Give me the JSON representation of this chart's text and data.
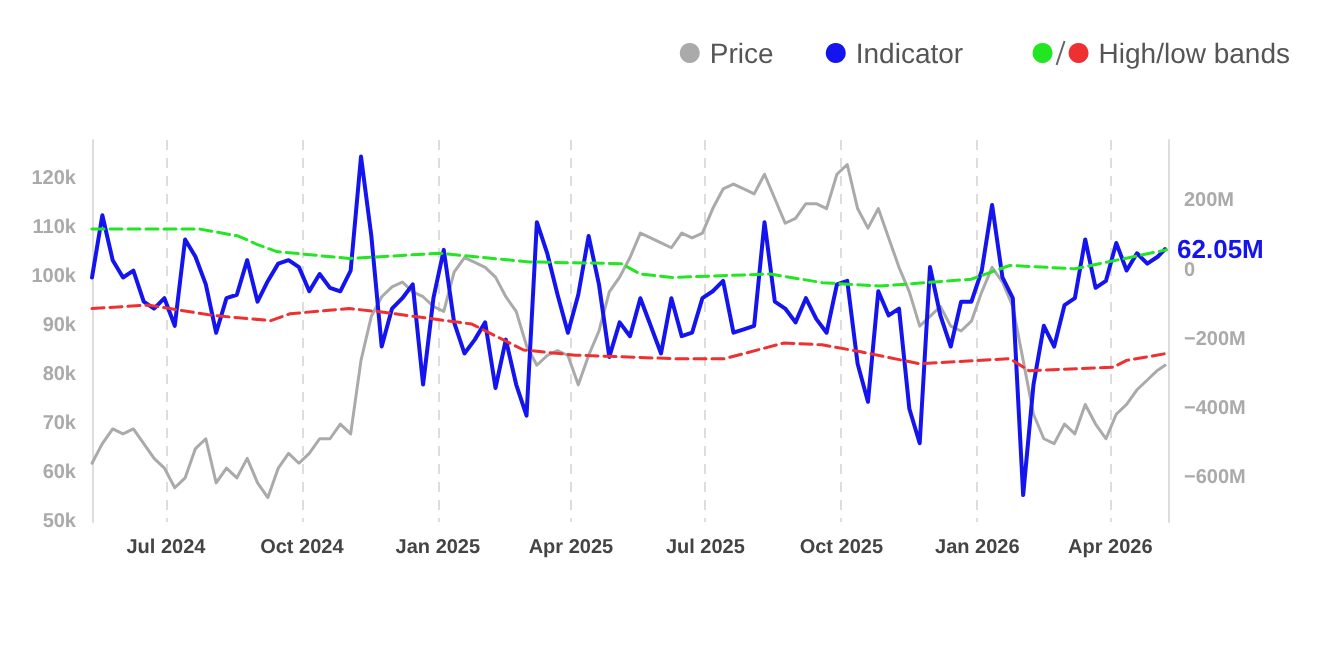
{
  "chart_data": {
    "type": "line",
    "marker": "none",
    "grid": "x",
    "legend": "top right",
    "x": [
      "2024-05-12",
      "2024-05-19",
      "2024-05-26",
      "2024-06-02",
      "2024-06-09",
      "2024-06-16",
      "2024-06-23",
      "2024-06-30",
      "2024-07-07",
      "2024-07-14",
      "2024-07-21",
      "2024-07-28",
      "2024-08-04",
      "2024-08-11",
      "2024-08-18",
      "2024-08-25",
      "2024-09-01",
      "2024-09-08",
      "2024-09-15",
      "2024-09-22",
      "2024-09-29",
      "2024-10-06",
      "2024-10-13",
      "2024-10-20",
      "2024-10-27",
      "2024-11-03",
      "2024-11-10",
      "2024-11-17",
      "2024-11-24",
      "2024-12-01",
      "2024-12-08",
      "2024-12-15",
      "2024-12-22",
      "2024-12-29",
      "2025-01-05",
      "2025-01-12",
      "2025-01-19",
      "2025-01-26",
      "2025-02-02",
      "2025-02-09",
      "2025-02-16",
      "2025-02-23",
      "2025-03-02",
      "2025-03-09",
      "2025-03-16",
      "2025-03-23",
      "2025-03-30",
      "2025-04-06",
      "2025-04-13",
      "2025-04-20",
      "2025-04-27",
      "2025-05-04",
      "2025-05-11",
      "2025-05-18",
      "2025-05-25",
      "2025-06-01",
      "2025-06-08",
      "2025-06-15",
      "2025-06-22",
      "2025-06-29",
      "2025-07-06",
      "2025-07-13",
      "2025-07-20",
      "2025-07-27",
      "2025-08-03",
      "2025-08-10",
      "2025-08-17",
      "2025-08-24",
      "2025-08-31",
      "2025-09-07",
      "2025-09-14",
      "2025-09-21",
      "2025-09-28",
      "2025-10-05",
      "2025-10-12",
      "2025-10-19",
      "2025-10-26",
      "2025-11-02",
      "2025-11-09",
      "2025-11-16",
      "2025-11-23",
      "2025-11-30",
      "2025-12-07",
      "2025-12-14",
      "2025-12-21",
      "2025-12-28",
      "2026-01-04",
      "2026-01-11",
      "2026-01-18",
      "2026-01-25",
      "2026-02-01",
      "2026-02-08",
      "2026-02-15",
      "2026-02-22",
      "2026-03-01",
      "2026-03-08",
      "2026-03-15",
      "2026-03-22",
      "2026-03-29",
      "2026-04-05",
      "2026-04-12",
      "2026-04-19",
      "2026-04-26",
      "2026-05-03",
      "2026-05-08"
    ],
    "xlim": [
      "2024-05-12",
      "2026-05-10"
    ],
    "xticks": [
      {
        "value": "2024-07-01",
        "label": "Jul 2024"
      },
      {
        "value": "2024-10-01",
        "label": "Oct 2024"
      },
      {
        "value": "2025-01-01",
        "label": "Jan 2025"
      },
      {
        "value": "2025-04-01",
        "label": "Apr 2025"
      },
      {
        "value": "2025-07-01",
        "label": "Jul 2025"
      },
      {
        "value": "2025-10-01",
        "label": "Oct 2025"
      },
      {
        "value": "2026-01-01",
        "label": "Jan 2026"
      },
      {
        "value": "2026-04-01",
        "label": "Apr 2026"
      }
    ],
    "ylim": [
      50,
      128
    ],
    "yticks": [
      {
        "value": 50,
        "label": "50k"
      },
      {
        "value": 60,
        "label": "60k"
      },
      {
        "value": 70,
        "label": "70k"
      },
      {
        "value": 80,
        "label": "80k"
      },
      {
        "value": 90,
        "label": "90k"
      },
      {
        "value": 100,
        "label": "100k"
      },
      {
        "value": 110,
        "label": "110k"
      },
      {
        "value": 120,
        "label": "120k"
      }
    ],
    "y2lim": [
      -728,
      378
    ],
    "y2ticks": [
      {
        "value": -600,
        "label": "−600M"
      },
      {
        "value": -400,
        "label": "−400M"
      },
      {
        "value": -200,
        "label": "−200M"
      },
      {
        "value": 0,
        "label": "0"
      },
      {
        "value": 200,
        "label": "200M"
      }
    ],
    "series": [
      {
        "name": "Price",
        "color": "#aaaaaa",
        "values": [
          62,
          66,
          69,
          68,
          69,
          66,
          63,
          61,
          57,
          59,
          65,
          67,
          58,
          61,
          59,
          63,
          58,
          55,
          61,
          64,
          62,
          64,
          67,
          67,
          70,
          68,
          83,
          92,
          96,
          98,
          99,
          97,
          96,
          94,
          93,
          101,
          104,
          103,
          102,
          100,
          96,
          93,
          86,
          82,
          84,
          85,
          84,
          78,
          84,
          89,
          97,
          100,
          104,
          109,
          108,
          107,
          106,
          109,
          108,
          109,
          114,
          118,
          119,
          118,
          117,
          121,
          116,
          111,
          112,
          115,
          115,
          114,
          121,
          123,
          114,
          110,
          114,
          108,
          102,
          97,
          90,
          92,
          94,
          90,
          89,
          91,
          97,
          102,
          99,
          94,
          83,
          72,
          67,
          66,
          70,
          68,
          74,
          70,
          67,
          72,
          74,
          77,
          79,
          81,
          82
        ]
      },
      {
        "name": "Indicator",
        "color": "#1414ee",
        "axis": "y2",
        "values": [
          -20,
          160,
          30,
          -20,
          0,
          -90,
          -110,
          -80,
          -160,
          90,
          40,
          -40,
          -180,
          -80,
          -70,
          30,
          -90,
          -30,
          20,
          30,
          10,
          -60,
          -10,
          -50,
          -60,
          0,
          330,
          100,
          -220,
          -110,
          -80,
          -40,
          -330,
          -80,
          60,
          -150,
          -240,
          -200,
          -150,
          -340,
          -200,
          -330,
          -420,
          140,
          50,
          -70,
          -180,
          -70,
          100,
          -40,
          -250,
          -150,
          -190,
          -80,
          -160,
          -240,
          -80,
          -190,
          -180,
          -80,
          -60,
          -30,
          -180,
          -170,
          -160,
          140,
          -90,
          -110,
          -150,
          -80,
          -140,
          -180,
          -40,
          -30,
          -270,
          -380,
          -60,
          -130,
          -110,
          -400,
          -500,
          10,
          -130,
          -220,
          -90,
          -90,
          0,
          190,
          -20,
          -80,
          -650,
          -330,
          -160,
          -220,
          -100,
          -80,
          90,
          -50,
          -30,
          80,
          0,
          50,
          20,
          40,
          62.05
        ],
        "value_labels": [
          null,
          null,
          null,
          null,
          null,
          null,
          null,
          null,
          null,
          null,
          null,
          null,
          null,
          null,
          null,
          null,
          null,
          null,
          null,
          null,
          null,
          null,
          null,
          null,
          null,
          null,
          null,
          null,
          null,
          null,
          null,
          null,
          null,
          null,
          null,
          null,
          null,
          null,
          null,
          null,
          null,
          null,
          null,
          null,
          null,
          null,
          null,
          null,
          null,
          null,
          null,
          null,
          null,
          null,
          null,
          null,
          null,
          null,
          null,
          null,
          null,
          null,
          null,
          null,
          null,
          null,
          null,
          null,
          null,
          null,
          null,
          null,
          null,
          null,
          null,
          null,
          null,
          null,
          null,
          null,
          null,
          null,
          null,
          null,
          null,
          null,
          null,
          null,
          null,
          null,
          null,
          null,
          null,
          null,
          null,
          null,
          null,
          null,
          null,
          null,
          null,
          null,
          null,
          null,
          "62.05M"
        ]
      },
      {
        "color": "#22e622",
        "axis": "y2",
        "line_style": "dashed",
        "x": [
          "2024-05-12",
          "2024-07-24",
          "2024-08-19",
          "2024-09-01",
          "2024-09-14",
          "2024-11-02",
          "2025-01-02",
          "2025-03-04",
          "2025-05-05",
          "2025-05-18",
          "2025-06-09",
          "2025-08-14",
          "2025-09-18",
          "2025-10-27",
          "2025-12-28",
          "2026-01-23",
          "2026-03-08",
          "2026-05-09"
        ],
        "values": [
          120,
          120,
          100,
          75,
          55,
          35,
          50,
          25,
          20,
          -10,
          -20,
          -10,
          -35,
          -45,
          -25,
          15,
          5,
          60
        ]
      },
      {
        "name": "High/low bands",
        "color": "#ee3030",
        "axis": "y2",
        "line_style": "dashed",
        "x": [
          "2024-05-12",
          "2024-06-19",
          "2024-08-02",
          "2024-09-10",
          "2024-09-23",
          "2024-11-02",
          "2024-11-24",
          "2025-01-24",
          "2025-02-28",
          "2025-04-04",
          "2025-06-09",
          "2025-07-14",
          "2025-08-23",
          "2025-09-18",
          "2025-10-14",
          "2025-11-23",
          "2026-01-23",
          "2026-02-05",
          "2026-04-03",
          "2026-04-12",
          "2026-05-09"
        ],
        "values": [
          -110,
          -100,
          -130,
          -145,
          -125,
          -110,
          -120,
          -155,
          -230,
          -245,
          -255,
          -255,
          -210,
          -215,
          -235,
          -270,
          -255,
          -290,
          -280,
          -260,
          -240
        ]
      }
    ]
  }
}
